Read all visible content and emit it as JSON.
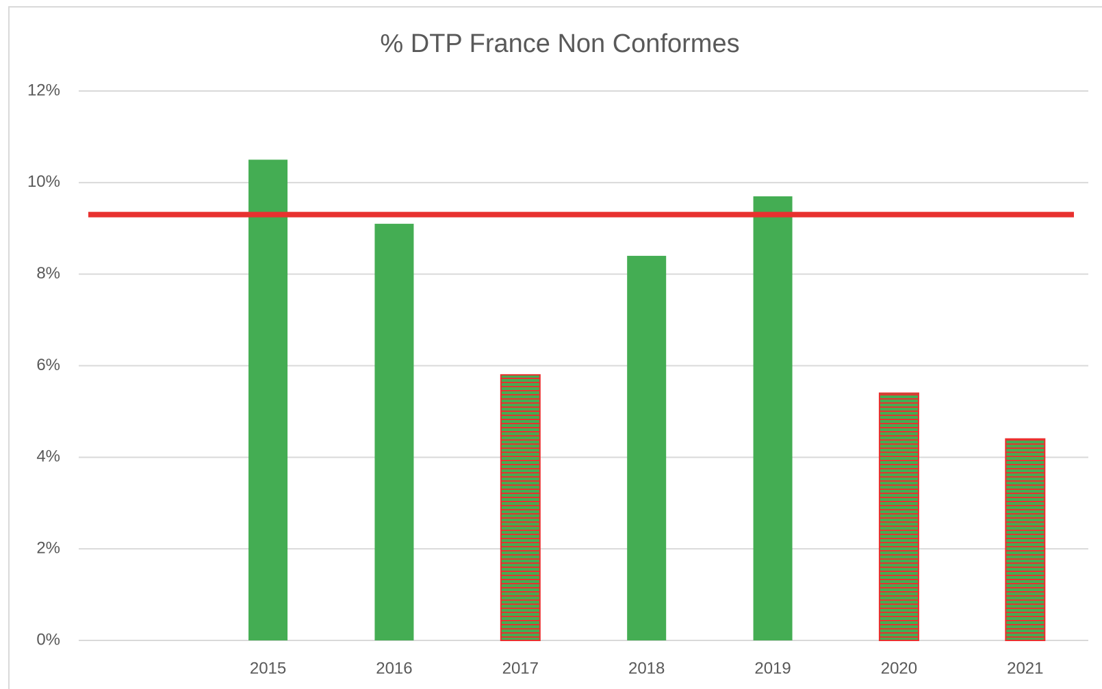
{
  "chart_data": {
    "type": "bar",
    "title": "% DTP France Non Conformes",
    "categories": [
      null,
      "2015",
      "2016",
      "2017",
      "2018",
      "2019",
      "2020",
      "2021"
    ],
    "values": [
      null,
      10.5,
      9.1,
      5.8,
      8.4,
      9.7,
      5.4,
      4.4
    ],
    "color": "#44ad53",
    "hatched": [
      false,
      false,
      false,
      true,
      false,
      false,
      true,
      true
    ],
    "hatch_color": "#e8312f",
    "reference_line": {
      "value": 9.3,
      "color": "#e8312f"
    },
    "ylim": [
      0,
      12
    ],
    "yticks": [
      {
        "value": 0,
        "label": "0%"
      },
      {
        "value": 2,
        "label": "2%"
      },
      {
        "value": 4,
        "label": "4%"
      },
      {
        "value": 6,
        "label": "6%"
      },
      {
        "value": 8,
        "label": "8%"
      },
      {
        "value": 10,
        "label": "10%"
      },
      {
        "value": 12,
        "label": "12%"
      }
    ],
    "grid": true
  }
}
